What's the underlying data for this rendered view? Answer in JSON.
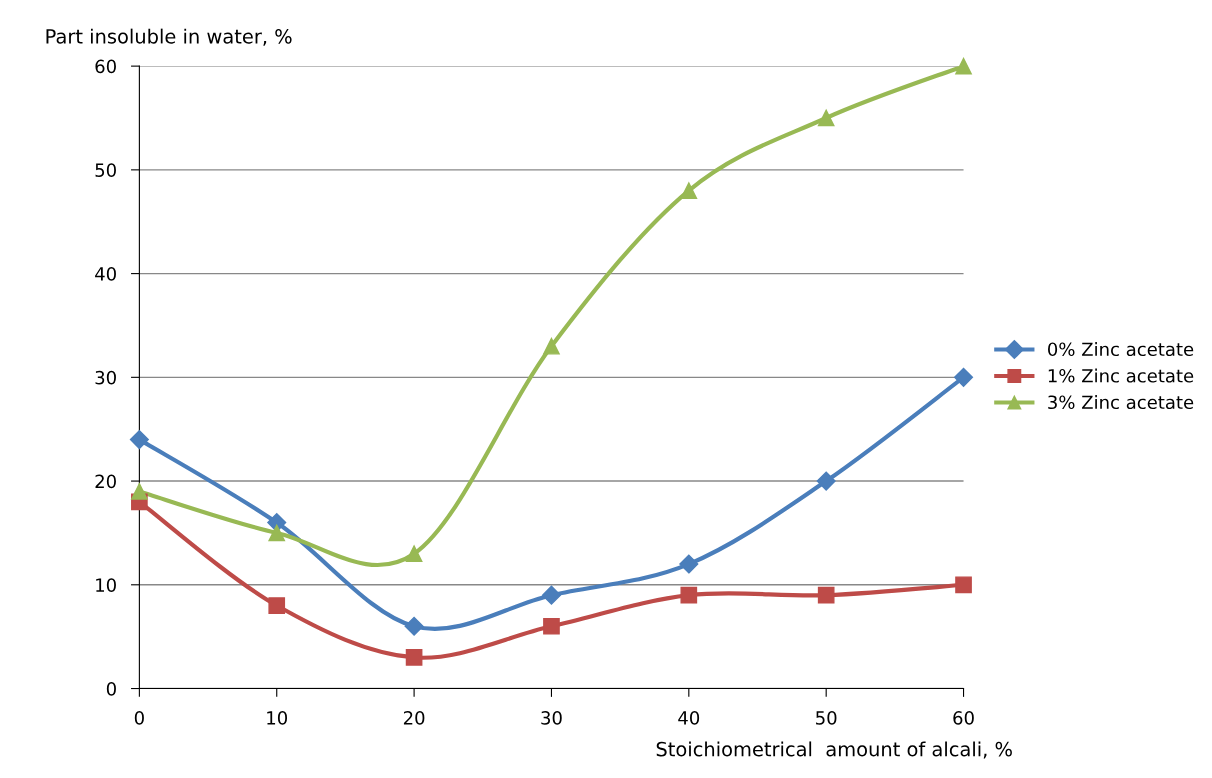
{
  "chart_data": {
    "type": "line",
    "xlabel": "Stoichiometrical  amount of alcali, %",
    "ylabel": "Part insoluble in water, %",
    "x": [
      0,
      10,
      20,
      30,
      40,
      50,
      60
    ],
    "series": [
      {
        "name": "0% Zinc acetate",
        "color": "#4a7ebb",
        "marker": "diamond",
        "values": [
          24,
          16,
          6,
          9,
          12,
          20,
          30
        ]
      },
      {
        "name": "1% Zinc acetate",
        "color": "#be4b48",
        "marker": "square",
        "values": [
          18,
          8,
          3,
          6,
          9,
          9,
          10
        ]
      },
      {
        "name": "3% Zinc acetate",
        "color": "#98b954",
        "marker": "triangle",
        "values": [
          19,
          15,
          13,
          33,
          48,
          55,
          60
        ]
      }
    ],
    "xlim": [
      0,
      60
    ],
    "xticks": [
      0,
      10,
      20,
      30,
      40,
      50,
      60
    ],
    "ylim": [
      0,
      60
    ],
    "yticks": [
      0,
      10,
      20,
      30,
      40,
      50,
      60
    ],
    "grid": "y",
    "legend": "right",
    "line_style": "solid"
  }
}
